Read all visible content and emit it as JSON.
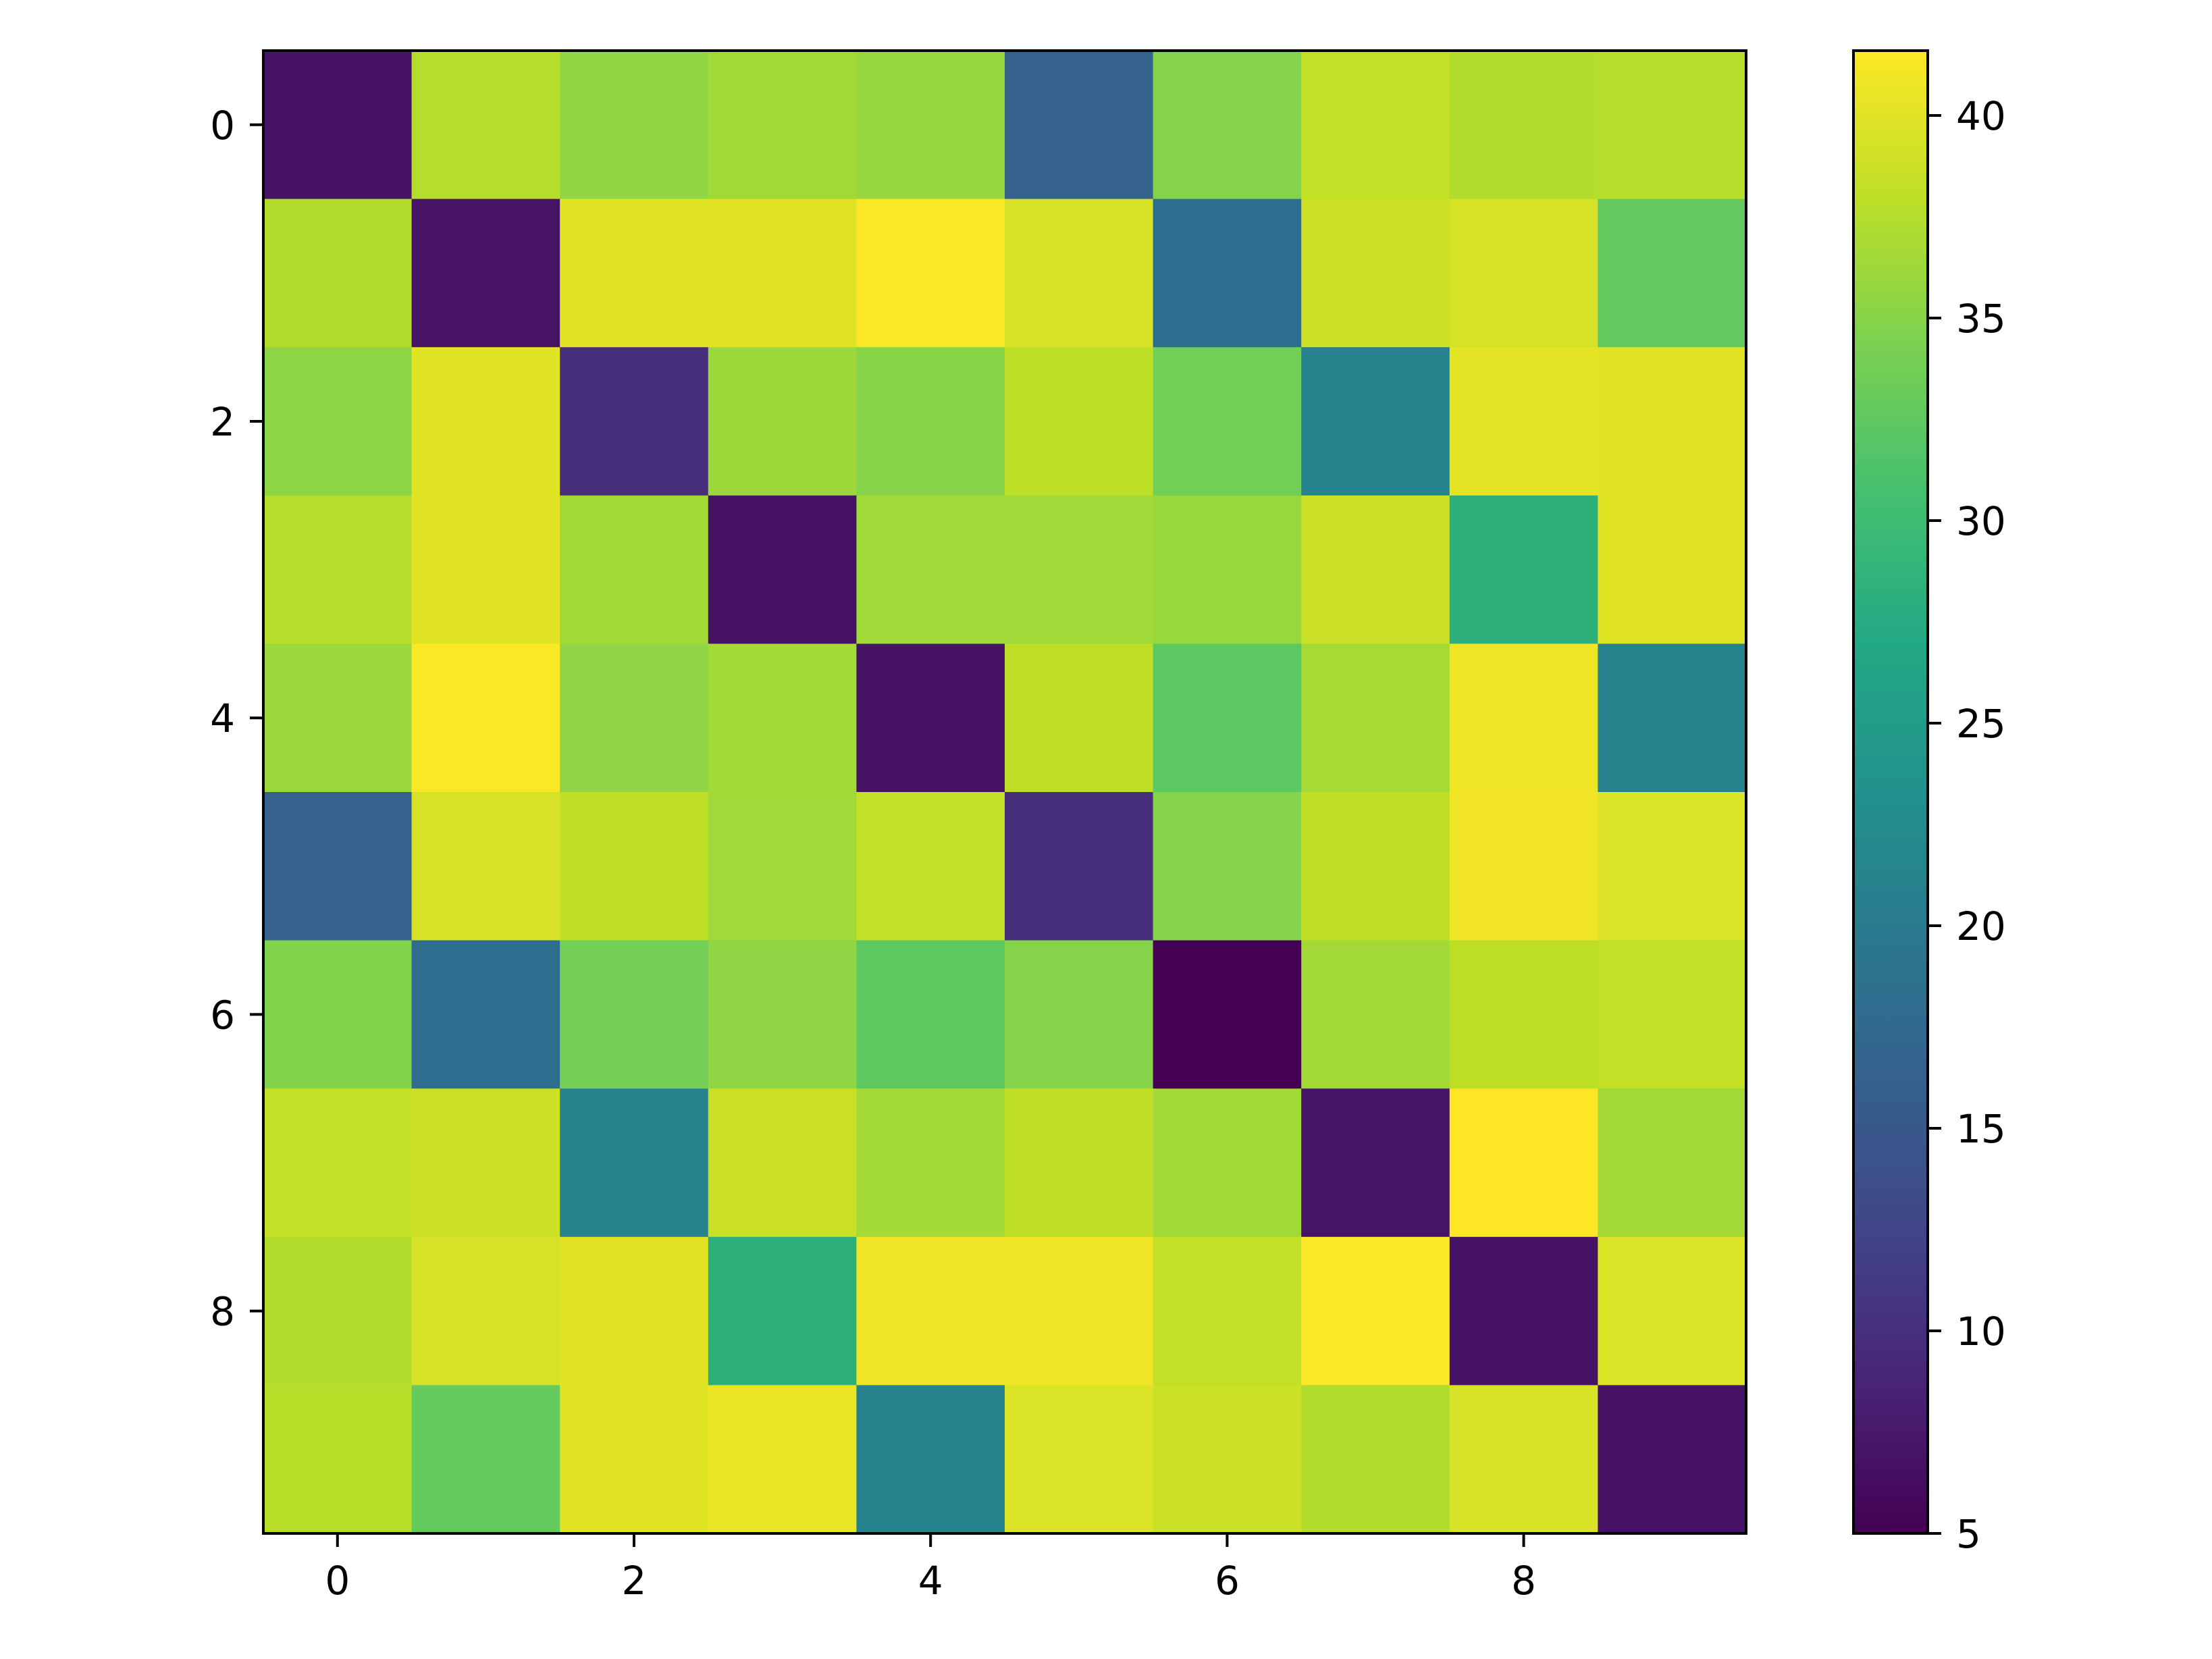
{
  "chart_data": {
    "type": "heatmap",
    "title": "",
    "xlabel": "",
    "ylabel": "",
    "colormap": "viridis",
    "rows": [
      0,
      1,
      2,
      3,
      4,
      5,
      6,
      7,
      8,
      9
    ],
    "cols": [
      0,
      1,
      2,
      3,
      4,
      5,
      6,
      7,
      8,
      9
    ],
    "values": [
      [
        6.8,
        37.5,
        35.5,
        36.5,
        35.8,
        16.4,
        34.8,
        38.3,
        37.3,
        37.6
      ],
      [
        37.4,
        6.9,
        40.0,
        40.0,
        41.4,
        39.4,
        18.1,
        38.8,
        39.3,
        32.7
      ],
      [
        35.3,
        40.0,
        9.8,
        36.2,
        35.0,
        37.9,
        33.7,
        21.2,
        40.2,
        40.0
      ],
      [
        37.6,
        40.0,
        36.5,
        6.8,
        36.4,
        36.4,
        36.0,
        38.6,
        28.3,
        40.0
      ],
      [
        36.1,
        41.4,
        35.4,
        36.6,
        6.8,
        38.0,
        32.3,
        36.7,
        40.8,
        21.2
      ],
      [
        16.4,
        39.4,
        38.0,
        36.4,
        38.3,
        9.8,
        34.9,
        38.1,
        40.9,
        39.6
      ],
      [
        34.7,
        18.1,
        33.8,
        35.4,
        32.4,
        34.9,
        5.0,
        36.5,
        37.9,
        38.2
      ],
      [
        38.3,
        38.8,
        21.2,
        38.6,
        36.6,
        38.0,
        36.5,
        7.0,
        41.6,
        36.6
      ],
      [
        37.4,
        39.3,
        40.0,
        28.3,
        40.8,
        40.8,
        38.3,
        41.5,
        6.8,
        39.6
      ],
      [
        37.7,
        32.8,
        40.0,
        40.5,
        21.2,
        39.6,
        38.7,
        37.4,
        39.5,
        6.8
      ]
    ],
    "x_ticks": [
      "0",
      "2",
      "4",
      "6",
      "8"
    ],
    "y_ticks": [
      "0",
      "2",
      "4",
      "6",
      "8"
    ],
    "colorbar": {
      "range": [
        5.0,
        41.6
      ],
      "ticks": [
        "5",
        "10",
        "15",
        "20",
        "25",
        "30",
        "35",
        "40"
      ]
    }
  }
}
